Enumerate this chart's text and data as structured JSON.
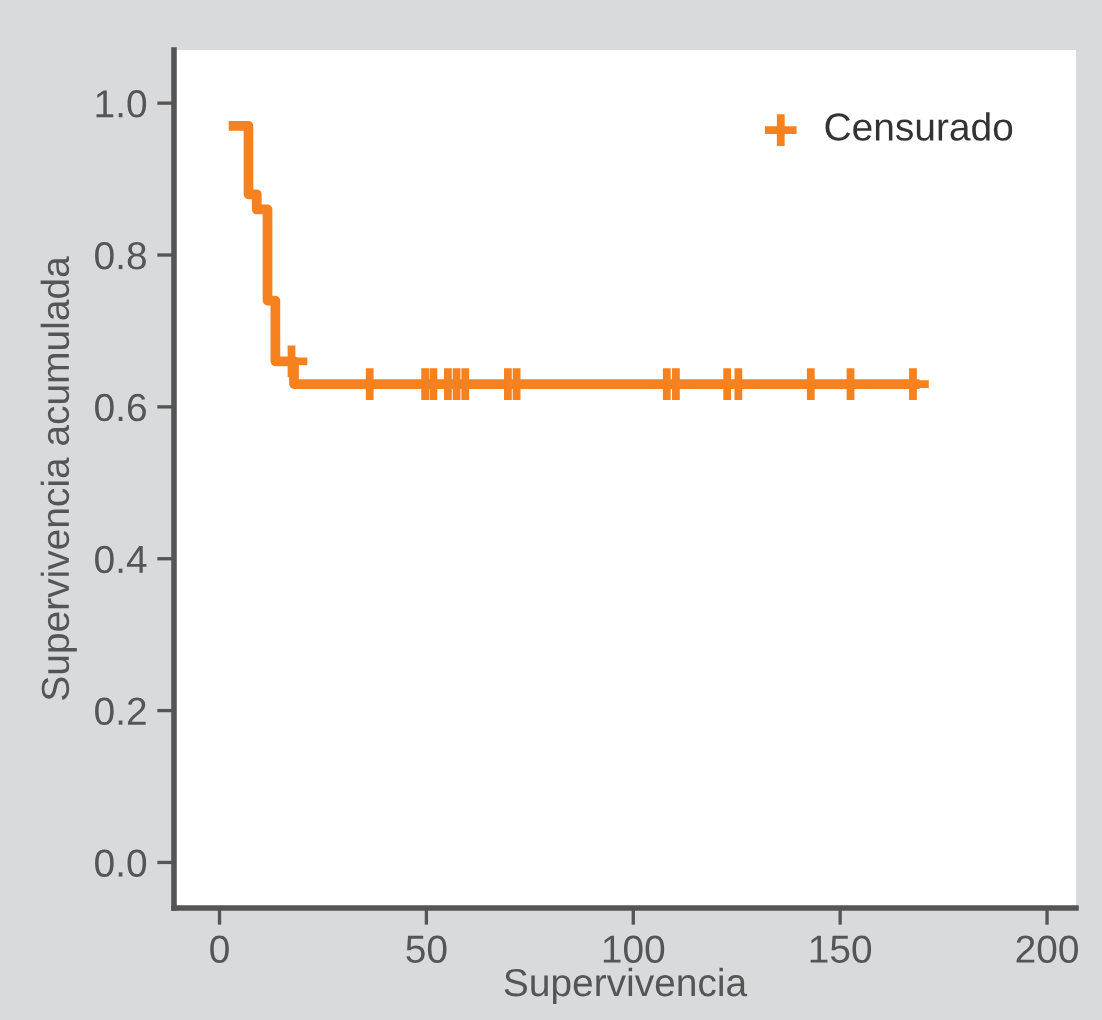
{
  "chart_data": {
    "type": "step",
    "xlabel": "Supervivencia",
    "ylabel": "Supervivencia acumulada",
    "xlim": [
      -11,
      207
    ],
    "ylim": [
      -0.06,
      1.07
    ],
    "xticks": [
      0,
      50,
      100,
      150,
      200
    ],
    "yticks": [
      {
        "value": 0,
        "label": "0.0"
      },
      {
        "value": 0.2,
        "label": "0.2"
      },
      {
        "value": 0.4,
        "label": "0.4"
      },
      {
        "value": 0.6,
        "label": "0.6"
      },
      {
        "value": 0.8,
        "label": "0.8"
      },
      {
        "value": 1,
        "label": "1.0"
      }
    ],
    "grid": false,
    "legend": "top right",
    "series": [
      {
        "color": "#f5821f",
        "x": [
          3.4,
          7,
          9,
          11.6,
          13.5,
          18,
          168
        ],
        "values": [
          0.97,
          0.88,
          0.86,
          0.74,
          0.66,
          0.63,
          0.63
        ]
      },
      {
        "type": "scatter",
        "name": "Censurado",
        "color": "#f5821f",
        "marker": "cross",
        "x": [
          17.4,
          36.3,
          49.7,
          51.7,
          55.2,
          57.3,
          59.4,
          69.7,
          71.8,
          108.1,
          110.3,
          122.7,
          125.4,
          142.9,
          152.5,
          167.6
        ],
        "values": [
          0.66,
          0.63,
          0.63,
          0.63,
          0.63,
          0.63,
          0.63,
          0.63,
          0.63,
          0.63,
          0.63,
          0.63,
          0.63,
          0.63,
          0.63,
          0.63
        ]
      }
    ]
  }
}
